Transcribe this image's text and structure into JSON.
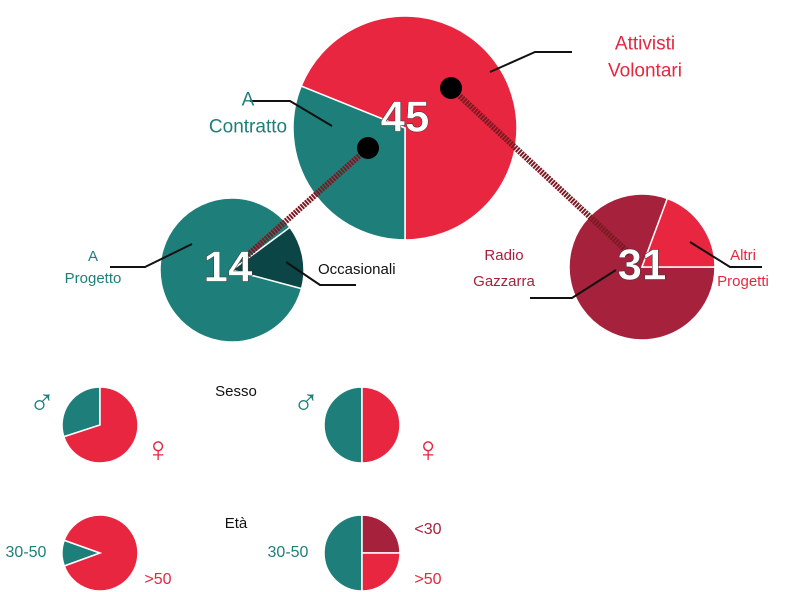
{
  "chart_data": [
    {
      "type": "pie",
      "total": 45,
      "categories": [
        "Attivisti Volontari",
        "A Contratto"
      ],
      "values": [
        31,
        14
      ],
      "colors": [
        "#e8263f",
        "#1e7f7a"
      ]
    },
    {
      "type": "pie",
      "total": 14,
      "categories": [
        "A Progetto",
        "Occasionali"
      ],
      "values": [
        12,
        2
      ],
      "colors": [
        "#1e7f7a",
        "#0b4545"
      ]
    },
    {
      "type": "pie",
      "total": 31,
      "categories": [
        "Radio Gazzarra",
        "Altri Progetti"
      ],
      "values": [
        25,
        6
      ],
      "colors": [
        "#a6213c",
        "#e8263f"
      ]
    },
    {
      "type": "pie",
      "title": "Sesso",
      "categories": [
        "♂",
        "♀"
      ],
      "values": [
        30,
        70
      ],
      "colors": [
        "#1e7f7a",
        "#e8263f"
      ]
    },
    {
      "type": "pie",
      "categories": [
        "♂",
        "♀"
      ],
      "values": [
        50,
        50
      ],
      "colors": [
        "#1e7f7a",
        "#e8263f"
      ]
    },
    {
      "type": "pie",
      "title": "Età",
      "categories": [
        "30-50",
        ">50"
      ],
      "values": [
        11,
        89
      ],
      "colors": [
        "#1e7f7a",
        "#e8263f"
      ]
    },
    {
      "type": "pie",
      "categories": [
        "30-50",
        "<30",
        ">50"
      ],
      "values": [
        50,
        25,
        25
      ],
      "colors": [
        "#1e7f7a",
        "#a6213c",
        "#e8263f"
      ]
    }
  ]
}
